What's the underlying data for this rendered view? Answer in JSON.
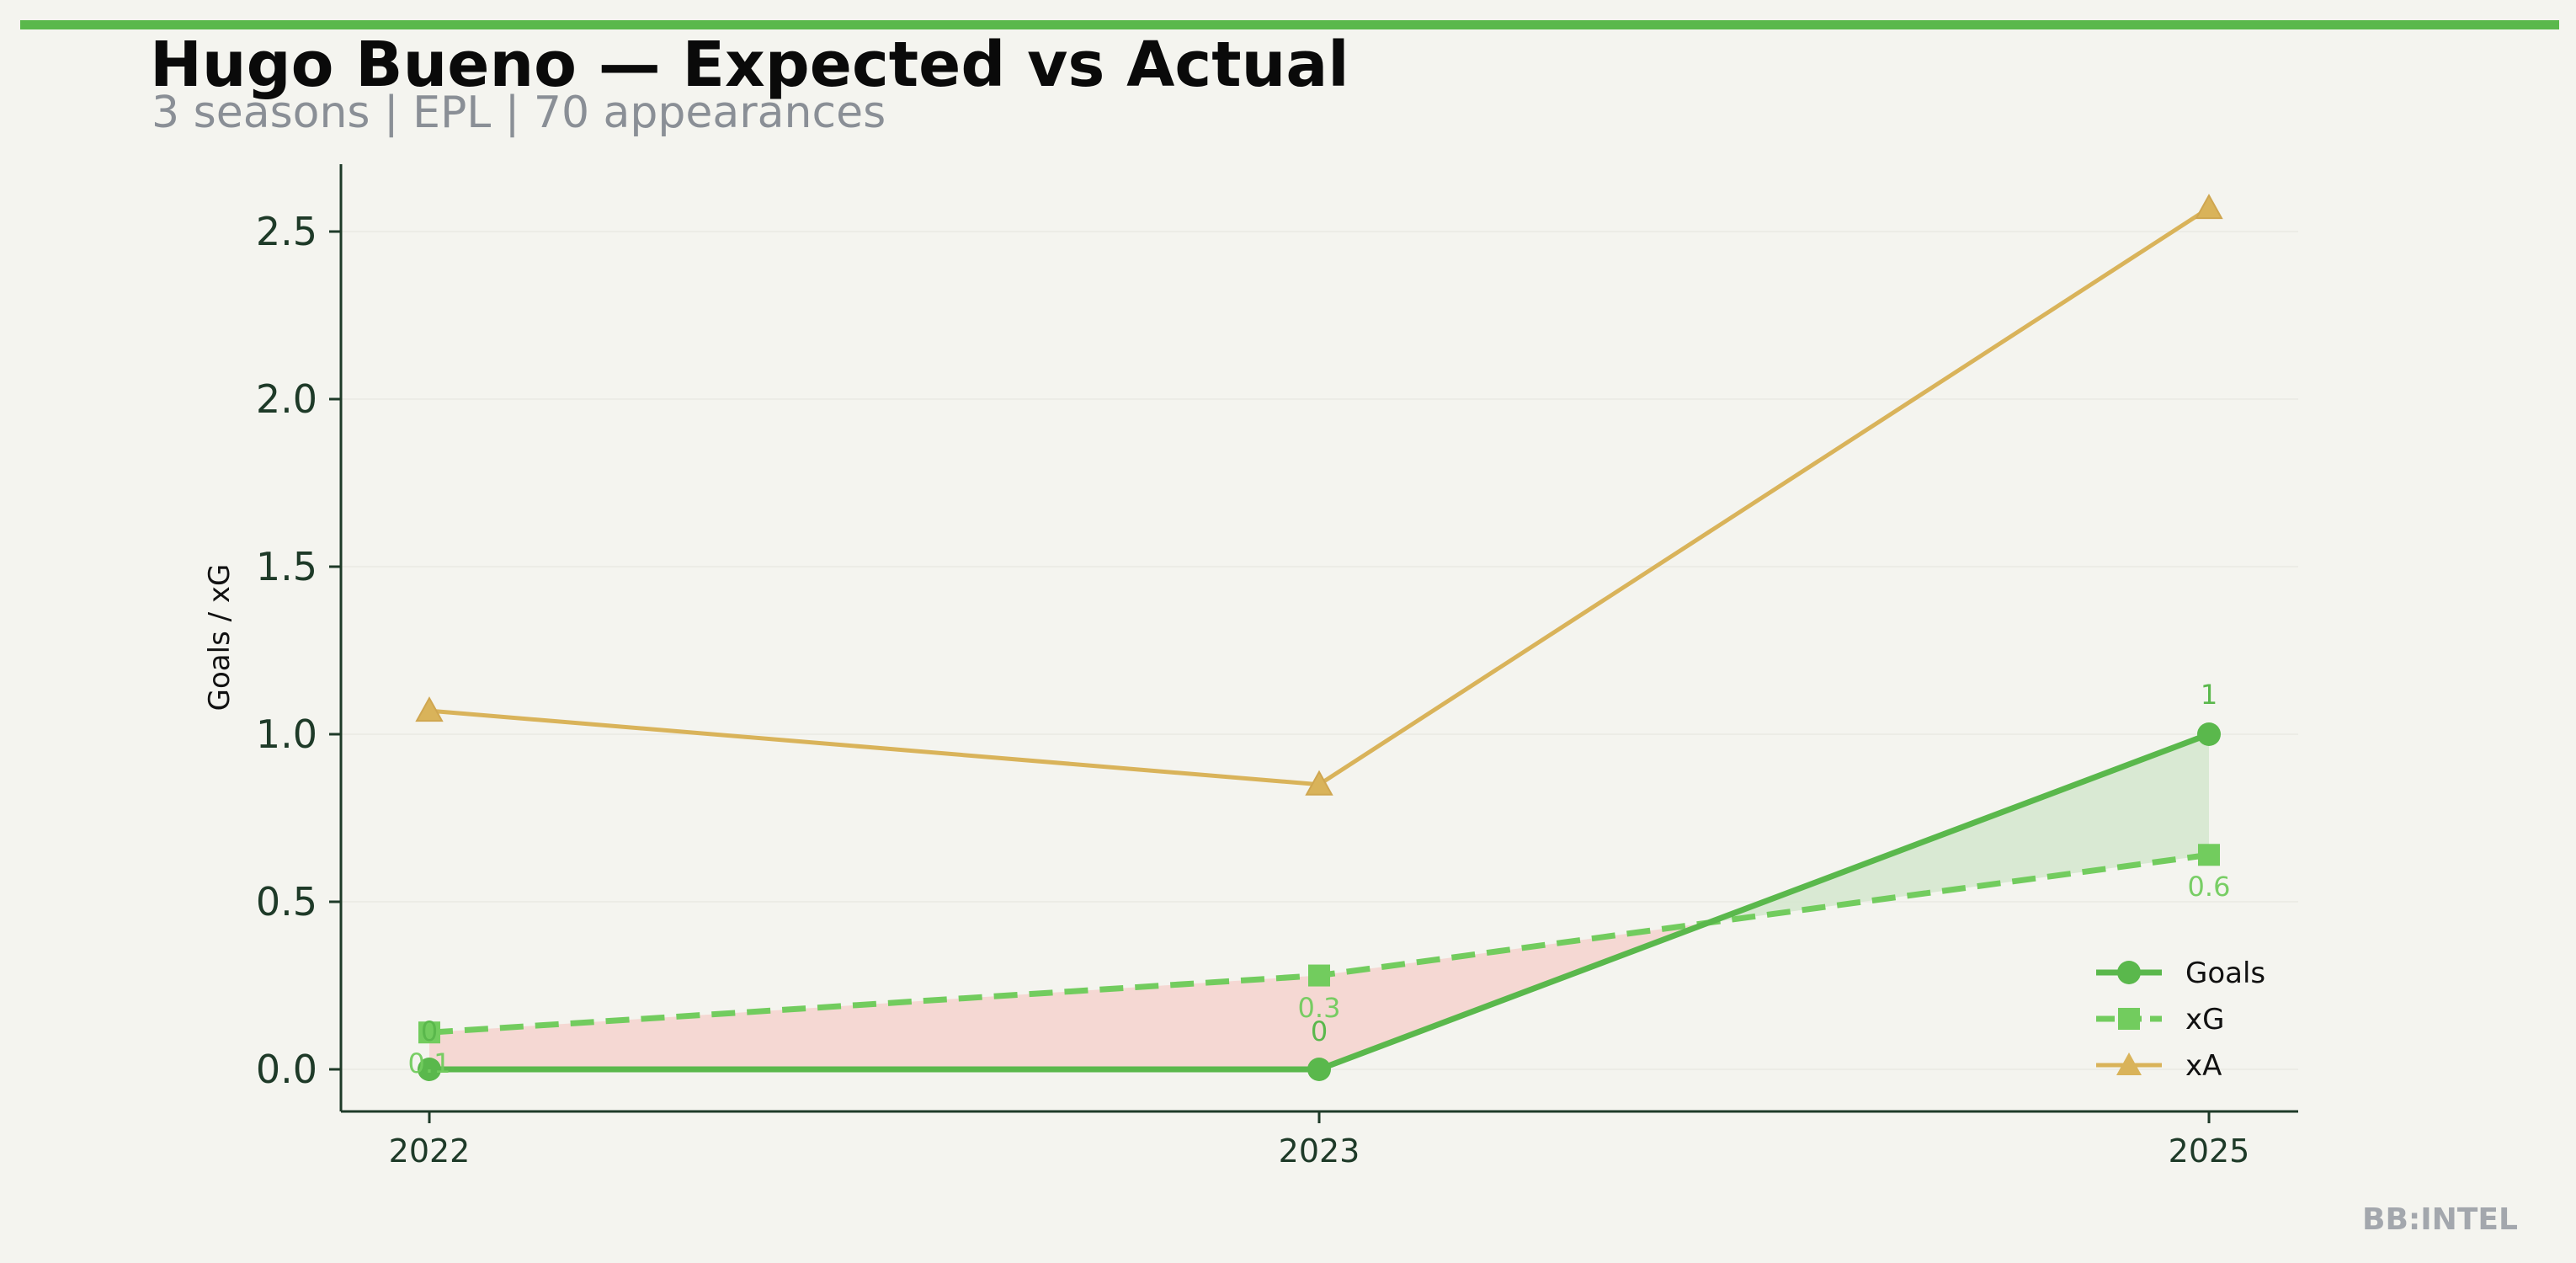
{
  "header": {
    "title": "Hugo Bueno — Expected vs Actual",
    "subtitle": "3 seasons | EPL | 70 appearances"
  },
  "watermark": "BB:INTEL",
  "colors": {
    "accent": "#5ab84c",
    "goals": "#5ab84c",
    "xg": "#72cc5e",
    "xa": "#d9b35a",
    "under_fill": "#f5d5cf",
    "over_fill": "#d6e8cf",
    "axis": "#1e3a28"
  },
  "chart_data": {
    "type": "line",
    "title": "Hugo Bueno — Expected vs Actual",
    "subtitle": "3 seasons | EPL | 70 appearances",
    "xlabel": "",
    "ylabel": "Goals / xG",
    "categories": [
      "2022",
      "2023",
      "2025"
    ],
    "yticks": [
      "0.0",
      "0.5",
      "1.0",
      "1.5",
      "2.0",
      "2.5"
    ],
    "ylim": [
      -0.13,
      2.7
    ],
    "grid": "horizontal",
    "legend_position": "bottom-right",
    "series": [
      {
        "name": "Goals",
        "values": [
          0,
          0,
          1
        ],
        "labels": [
          "0",
          "0",
          "1"
        ],
        "marker": "circle",
        "style": "solid"
      },
      {
        "name": "xG",
        "values": [
          0.11,
          0.28,
          0.64
        ],
        "labels": [
          "0.1",
          "0.3",
          "0.6"
        ],
        "marker": "square",
        "style": "dashed"
      },
      {
        "name": "xA",
        "values": [
          1.07,
          0.85,
          2.57
        ],
        "labels": [],
        "marker": "triangle",
        "style": "solid"
      }
    ]
  }
}
